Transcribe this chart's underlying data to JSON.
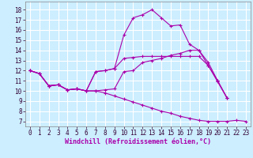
{
  "background_color": "#cceeff",
  "grid_color": "#ffffff",
  "line_color": "#aa00aa",
  "xlabel": "Windchill (Refroidissement éolien,°C)",
  "tick_fontsize": 5.5,
  "xlabel_fontsize": 6.0,
  "xlim": [
    -0.5,
    23.5
  ],
  "ylim": [
    6.5,
    18.8
  ],
  "yticks": [
    7,
    8,
    9,
    10,
    11,
    12,
    13,
    14,
    15,
    16,
    17,
    18
  ],
  "xticks": [
    0,
    1,
    2,
    3,
    4,
    5,
    6,
    7,
    8,
    9,
    10,
    11,
    12,
    13,
    14,
    15,
    16,
    17,
    18,
    19,
    20,
    21,
    22,
    23
  ],
  "s1_x": [
    0,
    1,
    2,
    3,
    4,
    5,
    6,
    7,
    8,
    9,
    10,
    11,
    12,
    13,
    14,
    15,
    16,
    17,
    18,
    19,
    20,
    21
  ],
  "s1_y": [
    12,
    11.7,
    10.5,
    10.6,
    10.1,
    10.2,
    10.0,
    10.0,
    10.1,
    10.2,
    11.9,
    12.0,
    12.8,
    13.0,
    13.2,
    13.5,
    13.7,
    14.0,
    14.0,
    12.8,
    11.0,
    9.3
  ],
  "s2_x": [
    0,
    1,
    2,
    3,
    4,
    5,
    6,
    7,
    8,
    9,
    10,
    11,
    12,
    13,
    14,
    15,
    16,
    17,
    18,
    19,
    20,
    21
  ],
  "s2_y": [
    12,
    11.7,
    10.5,
    10.6,
    10.1,
    10.2,
    10.0,
    11.9,
    12.0,
    12.2,
    15.5,
    17.2,
    17.5,
    18.0,
    17.2,
    16.4,
    16.5,
    14.6,
    14.0,
    12.5,
    10.9,
    9.3
  ],
  "s3_x": [
    0,
    1,
    2,
    3,
    4,
    5,
    6,
    7,
    8,
    9,
    10,
    11,
    12,
    13,
    14,
    15,
    16,
    17,
    18,
    19,
    20,
    21,
    22,
    23
  ],
  "s3_y": [
    12,
    11.7,
    10.5,
    10.6,
    10.1,
    10.2,
    10.0,
    10.0,
    9.8,
    9.5,
    9.2,
    8.9,
    8.6,
    8.3,
    8.0,
    7.8,
    7.5,
    7.3,
    7.1,
    7.0,
    7.0,
    7.0,
    7.1,
    7.0
  ],
  "s4_x": [
    0,
    1,
    2,
    3,
    4,
    5,
    6,
    7,
    8,
    9,
    10,
    11,
    12,
    13,
    14,
    15,
    16,
    17,
    18,
    19,
    20,
    21
  ],
  "s4_y": [
    12,
    11.7,
    10.5,
    10.6,
    10.1,
    10.2,
    10.0,
    11.9,
    12.0,
    12.2,
    13.2,
    13.3,
    13.4,
    13.4,
    13.4,
    13.4,
    13.4,
    13.4,
    13.4,
    12.5,
    11.0,
    9.3
  ]
}
